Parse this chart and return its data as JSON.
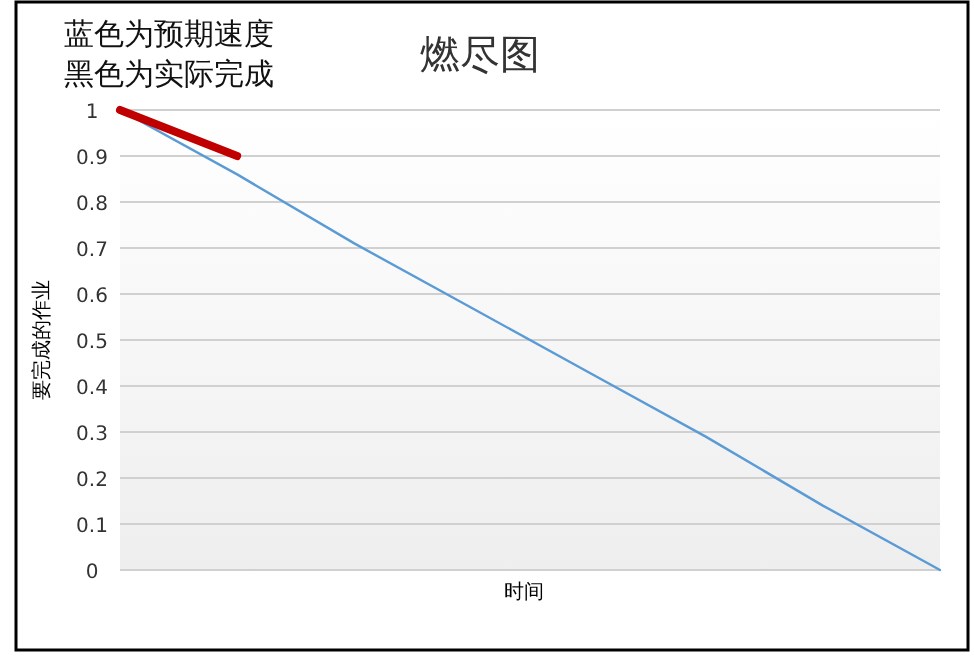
{
  "chart_data": {
    "type": "line",
    "title": "燃尽图",
    "xlabel": "时间",
    "ylabel": "要完成的作业",
    "annotations": [
      "蓝色为预期速度",
      "黑色为实际完成"
    ],
    "categories": [
      null,
      null,
      null,
      null,
      null,
      null,
      null,
      null
    ],
    "series": [
      {
        "color": "#5b9bd5",
        "values": [
          1,
          0.86,
          0.71,
          0.57,
          0.43,
          0.29,
          0.14,
          0
        ]
      },
      {
        "color": "#c00000",
        "values": [
          1,
          0.9,
          null,
          null,
          null,
          null,
          null,
          null
        ]
      }
    ],
    "ylim": [
      0,
      1
    ],
    "yticks": [
      0,
      0.1,
      0.2,
      0.3,
      0.4,
      0.5,
      0.6,
      0.7,
      0.8,
      0.9,
      1
    ],
    "grid": "y",
    "tick_labels": "y"
  }
}
